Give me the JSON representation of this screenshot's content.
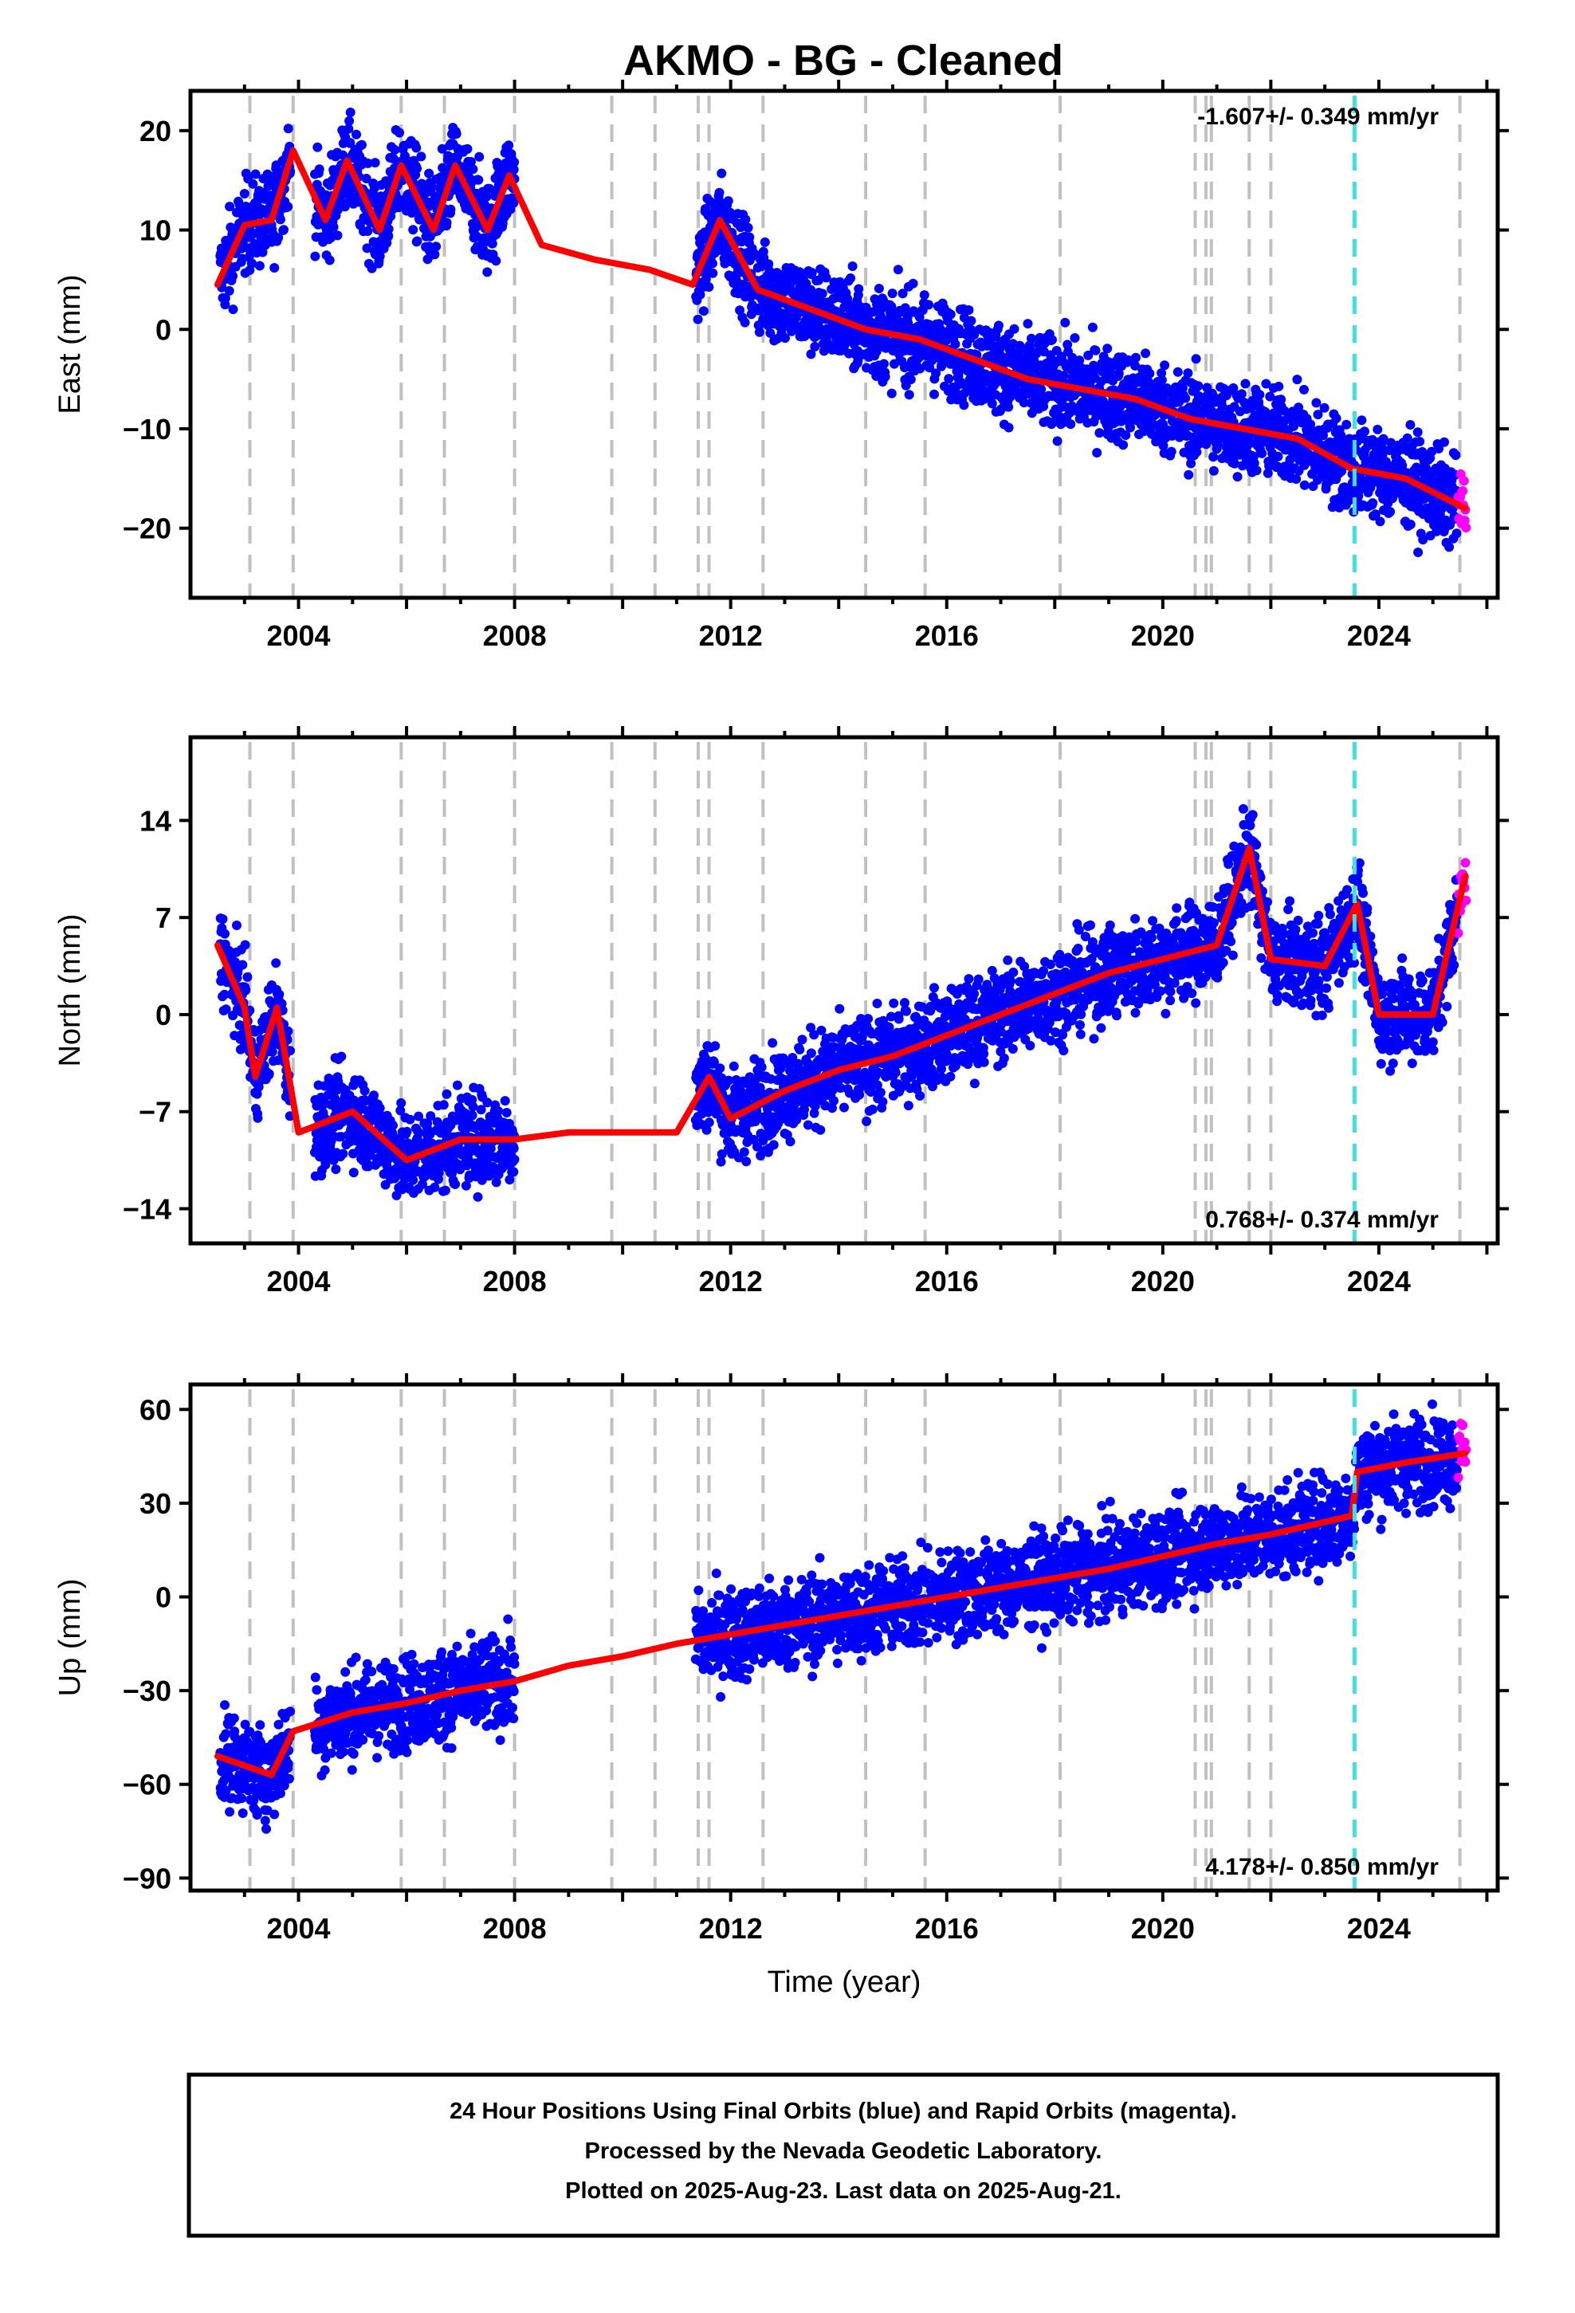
{
  "title": "AKMO  - BG - Cleaned",
  "colors": {
    "final_orbits": "#0000ff",
    "rapid_orbits": "#ff00ff",
    "model": "#ff0000",
    "event_lines": "#c0c0c0",
    "antenna_change": "#40e0e0"
  },
  "chart_data": [
    {
      "type": "scatter",
      "component": "east",
      "ylabel": "East (mm)",
      "xlabel": "",
      "xlim": [
        2002.0,
        2026.2
      ],
      "ylim": [
        -27,
        24
      ],
      "yticks": [
        -20,
        -10,
        0,
        10,
        20
      ],
      "xticks": [
        2004,
        2008,
        2012,
        2016,
        2020,
        2024
      ],
      "rate_text": "-1.607+/- 0.349 mm/yr",
      "rate_position": "top-right",
      "model_curve": [
        {
          "x": 2002.5,
          "y": 4.5
        },
        {
          "x": 2003.0,
          "y": 10.5
        },
        {
          "x": 2003.5,
          "y": 11.0
        },
        {
          "x": 2003.9,
          "y": 18.0
        },
        {
          "x": 2004.5,
          "y": 11.0
        },
        {
          "x": 2004.9,
          "y": 17.0
        },
        {
          "x": 2005.5,
          "y": 10.0
        },
        {
          "x": 2005.9,
          "y": 16.5
        },
        {
          "x": 2006.5,
          "y": 10.0
        },
        {
          "x": 2006.9,
          "y": 16.5
        },
        {
          "x": 2007.5,
          "y": 10.0
        },
        {
          "x": 2007.9,
          "y": 15.5
        },
        {
          "x": 2008.5,
          "y": 8.5
        },
        {
          "x": 2009.5,
          "y": 7.0
        },
        {
          "x": 2010.5,
          "y": 6.0
        },
        {
          "x": 2011.3,
          "y": 4.5
        },
        {
          "x": 2011.8,
          "y": 11.0
        },
        {
          "x": 2012.5,
          "y": 4.0
        },
        {
          "x": 2013.5,
          "y": 2.0
        },
        {
          "x": 2014.5,
          "y": 0.0
        },
        {
          "x": 2015.5,
          "y": -1.0
        },
        {
          "x": 2016.5,
          "y": -3.0
        },
        {
          "x": 2017.5,
          "y": -5.0
        },
        {
          "x": 2018.5,
          "y": -6.0
        },
        {
          "x": 2019.5,
          "y": -7.0
        },
        {
          "x": 2020.5,
          "y": -9.0
        },
        {
          "x": 2021.5,
          "y": -10.0
        },
        {
          "x": 2022.5,
          "y": -11.0
        },
        {
          "x": 2023.5,
          "y": -14.0
        },
        {
          "x": 2024.5,
          "y": -15.0
        },
        {
          "x": 2025.6,
          "y": -18.0
        }
      ]
    },
    {
      "type": "scatter",
      "component": "north",
      "ylabel": "North (mm)",
      "xlabel": "",
      "xlim": [
        2002.0,
        2026.2
      ],
      "ylim": [
        -16.5,
        20
      ],
      "yticks": [
        -14,
        -7,
        0,
        7,
        14
      ],
      "xticks": [
        2004,
        2008,
        2012,
        2016,
        2020,
        2024
      ],
      "rate_text": "0.768+/- 0.374 mm/yr",
      "rate_position": "bottom-right",
      "model_curve": [
        {
          "x": 2002.5,
          "y": 5.0
        },
        {
          "x": 2003.0,
          "y": 0.5
        },
        {
          "x": 2003.2,
          "y": -4.5
        },
        {
          "x": 2003.6,
          "y": 0.5
        },
        {
          "x": 2004.0,
          "y": -8.5
        },
        {
          "x": 2005.0,
          "y": -7.0
        },
        {
          "x": 2006.0,
          "y": -10.5
        },
        {
          "x": 2007.0,
          "y": -9.0
        },
        {
          "x": 2008.0,
          "y": -9.0
        },
        {
          "x": 2009.0,
          "y": -8.5
        },
        {
          "x": 2010.0,
          "y": -8.5
        },
        {
          "x": 2011.0,
          "y": -8.5
        },
        {
          "x": 2011.6,
          "y": -4.5
        },
        {
          "x": 2012.0,
          "y": -7.5
        },
        {
          "x": 2013.0,
          "y": -5.5
        },
        {
          "x": 2014.0,
          "y": -4.0
        },
        {
          "x": 2015.0,
          "y": -3.0
        },
        {
          "x": 2016.0,
          "y": -1.5
        },
        {
          "x": 2017.0,
          "y": 0.0
        },
        {
          "x": 2018.0,
          "y": 1.5
        },
        {
          "x": 2019.0,
          "y": 3.0
        },
        {
          "x": 2020.0,
          "y": 4.0
        },
        {
          "x": 2021.0,
          "y": 5.0
        },
        {
          "x": 2021.6,
          "y": 12.0
        },
        {
          "x": 2022.0,
          "y": 4.0
        },
        {
          "x": 2023.0,
          "y": 3.5
        },
        {
          "x": 2023.6,
          "y": 8.0
        },
        {
          "x": 2024.0,
          "y": 0.0
        },
        {
          "x": 2025.0,
          "y": 0.0
        },
        {
          "x": 2025.6,
          "y": 10.0
        }
      ]
    },
    {
      "type": "scatter",
      "component": "up",
      "ylabel": "Up (mm)",
      "xlabel": "Time (year)",
      "xlim": [
        2002.0,
        2026.2
      ],
      "ylim": [
        -94,
        68
      ],
      "yticks": [
        -90,
        -60,
        -30,
        0,
        30,
        60
      ],
      "xticks": [
        2004,
        2008,
        2012,
        2016,
        2020,
        2024
      ],
      "rate_text": "4.178+/- 0.850 mm/yr",
      "rate_position": "bottom-right",
      "model_curve": [
        {
          "x": 2002.5,
          "y": -51
        },
        {
          "x": 2003.5,
          "y": -57
        },
        {
          "x": 2003.9,
          "y": -43
        },
        {
          "x": 2005.0,
          "y": -37
        },
        {
          "x": 2006.0,
          "y": -34
        },
        {
          "x": 2007.0,
          "y": -30
        },
        {
          "x": 2008.0,
          "y": -27
        },
        {
          "x": 2009.0,
          "y": -22
        },
        {
          "x": 2010.0,
          "y": -19
        },
        {
          "x": 2011.0,
          "y": -15
        },
        {
          "x": 2012.0,
          "y": -12
        },
        {
          "x": 2013.0,
          "y": -9
        },
        {
          "x": 2014.0,
          "y": -6
        },
        {
          "x": 2015.0,
          "y": -3
        },
        {
          "x": 2016.0,
          "y": 0
        },
        {
          "x": 2017.0,
          "y": 3
        },
        {
          "x": 2018.0,
          "y": 6
        },
        {
          "x": 2019.0,
          "y": 9
        },
        {
          "x": 2020.0,
          "y": 13
        },
        {
          "x": 2021.0,
          "y": 17
        },
        {
          "x": 2022.0,
          "y": 20
        },
        {
          "x": 2023.0,
          "y": 24
        },
        {
          "x": 2023.5,
          "y": 26
        },
        {
          "x": 2023.6,
          "y": 40
        },
        {
          "x": 2024.5,
          "y": 43
        },
        {
          "x": 2025.6,
          "y": 46
        }
      ]
    }
  ],
  "event_lines": [
    2003.1,
    2003.9,
    2005.9,
    2006.7,
    2008.0,
    2009.8,
    2010.6,
    2011.4,
    2011.6,
    2012.6,
    2014.5,
    2015.6,
    2018.1,
    2020.6,
    2020.8,
    2020.9,
    2021.6,
    2022.0,
    2025.5
  ],
  "antenna_change": 2023.55,
  "footer": {
    "line1": "24 Hour Positions Using Final Orbits (blue) and Rapid Orbits (magenta).",
    "line2": "Processed by the Nevada Geodetic Laboratory.",
    "line3": "Plotted on 2025-Aug-23. Last data on 2025-Aug-21."
  }
}
